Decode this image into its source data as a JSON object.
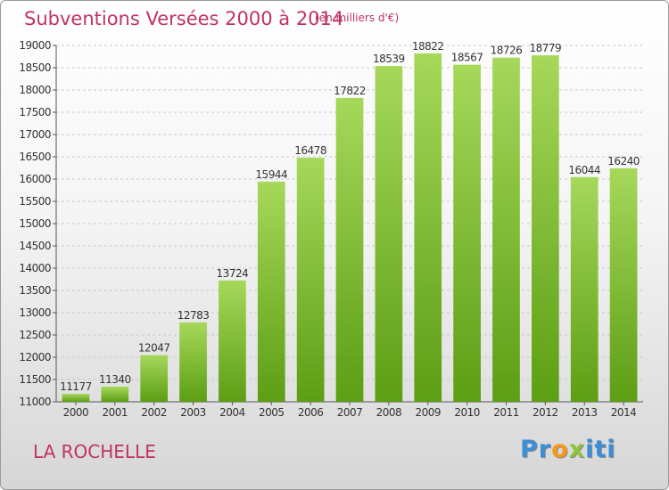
{
  "header": {
    "title": "Subventions Versées 2000 à 2014",
    "subtitle": "(en milliers d'€)"
  },
  "footer": {
    "commune": "LA ROCHELLE",
    "logo_letters": [
      {
        "char": "P",
        "color": "#3a8fd6"
      },
      {
        "char": "r",
        "color": "#3a8fd6"
      },
      {
        "char": "o",
        "color": "#f29a1c"
      },
      {
        "char": "x",
        "color": "#8cc43b"
      },
      {
        "char": "i",
        "color": "#3a8fd6"
      },
      {
        "char": "t",
        "color": "#3a8fd6"
      },
      {
        "char": "i",
        "color": "#3a8fd6"
      }
    ]
  },
  "colors": {
    "bar_light": "#a6d85a",
    "bar_dark": "#5c9e14",
    "title": "#c0335f",
    "grid": "#c8c8c8"
  },
  "chart_data": {
    "type": "bar",
    "categories": [
      "2000",
      "2001",
      "2002",
      "2003",
      "2004",
      "2005",
      "2006",
      "2007",
      "2008",
      "2009",
      "2010",
      "2011",
      "2012",
      "2013",
      "2014"
    ],
    "values": [
      11177,
      11340,
      12047,
      12783,
      13724,
      15944,
      16478,
      17822,
      18539,
      18822,
      18567,
      18726,
      18779,
      16044,
      16240
    ],
    "ylim": [
      11000,
      19000
    ],
    "yticks": [
      11000,
      11500,
      12000,
      12500,
      13000,
      13500,
      14000,
      14500,
      15000,
      15500,
      16000,
      16500,
      17000,
      17500,
      18000,
      18500,
      19000
    ],
    "grid": true,
    "title": "Subventions Versées 2000 à 2014",
    "xlabel": "",
    "ylabel": ""
  }
}
